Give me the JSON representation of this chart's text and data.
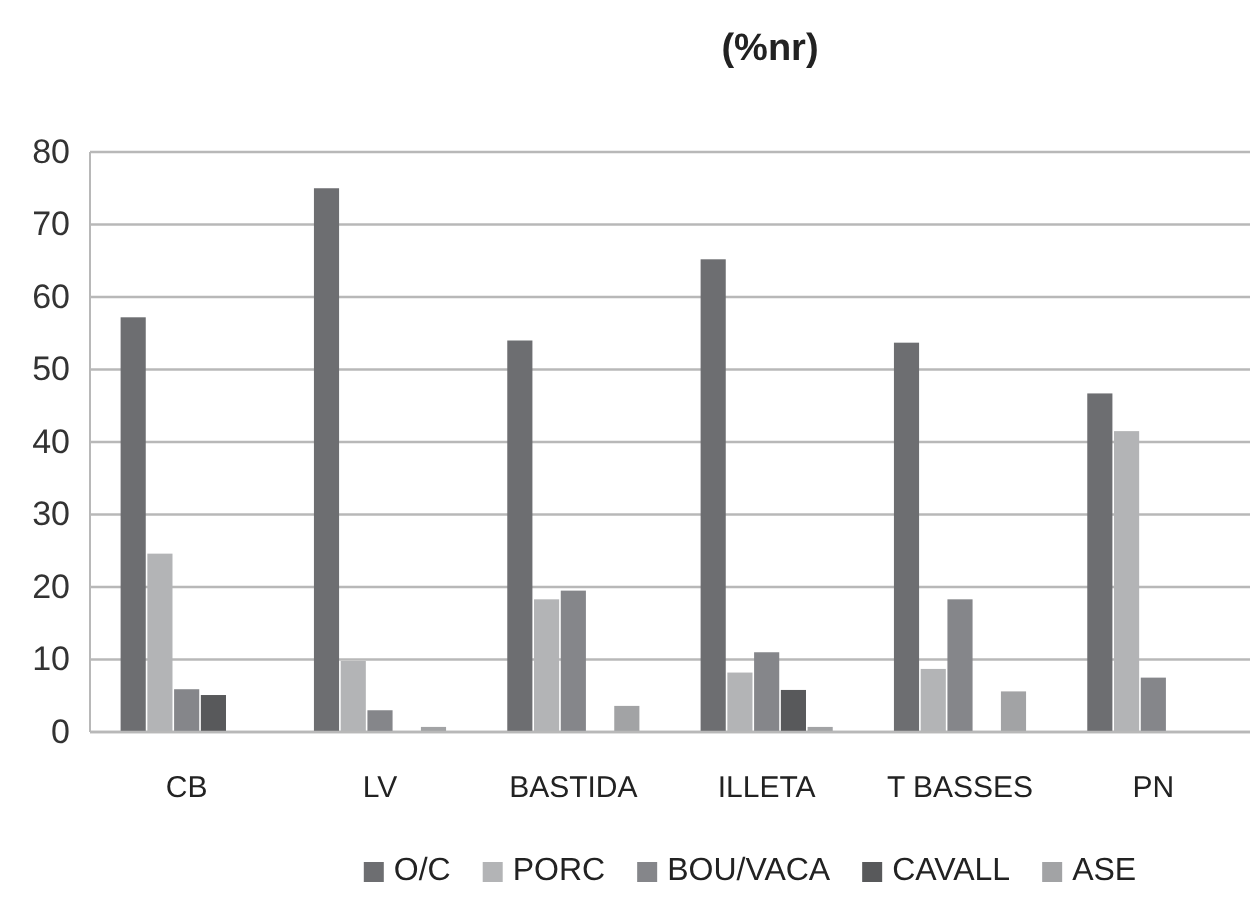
{
  "chart_data": {
    "type": "bar",
    "title": "(%nr)",
    "categories": [
      "CB",
      "LV",
      "BASTIDA",
      "ILLETA",
      "T BASSES",
      "PN"
    ],
    "series": [
      {
        "name": "O/C",
        "color": "#6d6e71",
        "values": [
          57.2,
          75,
          54,
          65.2,
          53.7,
          46.7
        ]
      },
      {
        "name": "PORC",
        "color": "#b3b4b6",
        "values": [
          24.6,
          9.8,
          18.3,
          8.2,
          8.7,
          41.5
        ]
      },
      {
        "name": "BOU/VACA",
        "color": "#85868a",
        "values": [
          5.9,
          3,
          19.5,
          11,
          18.3,
          7.5
        ]
      },
      {
        "name": "CAVALL",
        "color": "#58595b",
        "values": [
          5.1,
          0,
          0,
          5.8,
          0,
          0
        ]
      },
      {
        "name": "ASE",
        "color": "#a2a3a5",
        "values": [
          0,
          0.7,
          3.6,
          0.7,
          5.6,
          0
        ]
      }
    ],
    "ylim": [
      0,
      80
    ],
    "yticks": [
      0,
      10,
      20,
      30,
      40,
      50,
      60,
      70,
      80
    ],
    "grid": "y",
    "legend": "bottom"
  }
}
